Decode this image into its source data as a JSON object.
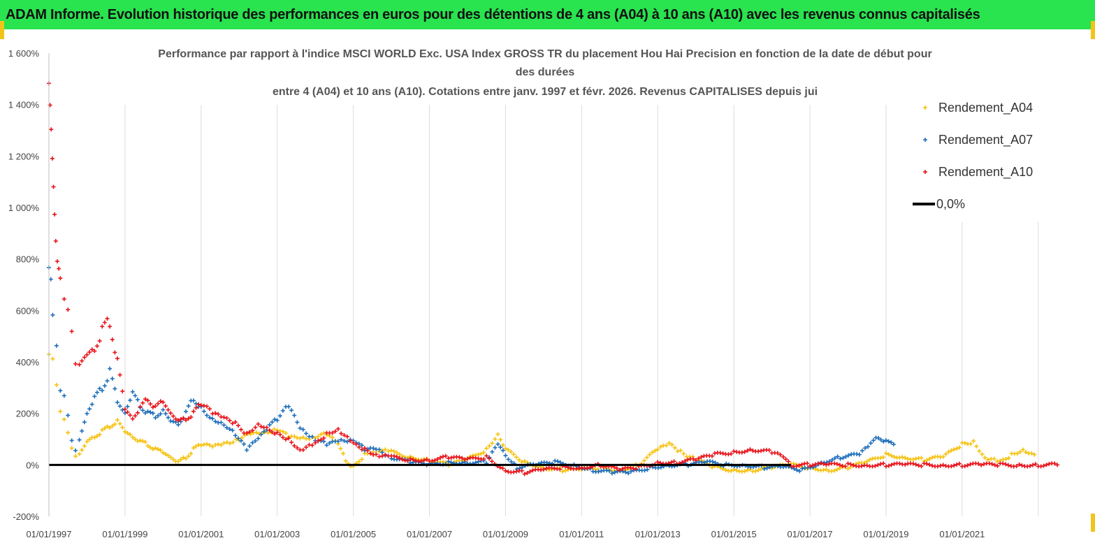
{
  "banner": {
    "title": "ADAM Informe. Evolution historique des performances en euros pour des détentions de 4 ans (A04) à 10 ans (A10) avec les revenus connus capitalisés"
  },
  "colors": {
    "banner_bg": "#29e34f",
    "A04": "#f5c211",
    "A07": "#1f6fba",
    "A10": "#e8141b",
    "zero": "#000000"
  },
  "chart_data": {
    "type": "scatter",
    "title_lines": [
      "Performance par rapport à l'indice MSCI WORLD  Exc. USA Index GROSS TR  du placement Hou Hai Precision   en fonction de la date de début pour",
      "des durées",
      "entre 4 (A04) et 10 ans (A10). Cotations entre janv. 1997 et févr. 2026. Revenus CAPITALISES depuis jui"
    ],
    "x_ticks": [
      "01/01/1997",
      "01/01/1999",
      "01/01/2001",
      "01/01/2003",
      "01/01/2005",
      "01/01/2007",
      "01/01/2009",
      "01/01/2011",
      "01/01/2013",
      "01/01/2015",
      "01/01/2017",
      "01/01/2019",
      "01/01/2021"
    ],
    "y_ticks": [
      "1 600%",
      "1 400%",
      "1 200%",
      "1 000%",
      "800%",
      "600%",
      "400%",
      "200%",
      "0%",
      "-200%"
    ],
    "xlim": [
      1997.0,
      2023.5
    ],
    "ylim": [
      -200,
      1600
    ],
    "grid": "vertical",
    "legend_position": "top-right",
    "legend": [
      "Rendement_A04",
      "Rendement_A07",
      "Rendement_A10",
      "0,0%"
    ],
    "series": [
      {
        "name": "Rendement_A04",
        "points": [
          [
            1997.0,
            420
          ],
          [
            1997.1,
            400
          ],
          [
            1997.2,
            300
          ],
          [
            1997.3,
            200
          ],
          [
            1997.4,
            170
          ],
          [
            1997.5,
            120
          ],
          [
            1997.6,
            60
          ],
          [
            1997.7,
            30
          ],
          [
            1997.8,
            40
          ],
          [
            1998.0,
            90
          ],
          [
            1998.2,
            110
          ],
          [
            1998.4,
            130
          ],
          [
            1998.6,
            150
          ],
          [
            1998.8,
            170
          ],
          [
            1999.0,
            130
          ],
          [
            1999.2,
            110
          ],
          [
            1999.4,
            90
          ],
          [
            1999.6,
            80
          ],
          [
            1999.8,
            60
          ],
          [
            2000.0,
            50
          ],
          [
            2000.2,
            30
          ],
          [
            2000.4,
            10
          ],
          [
            2000.6,
            30
          ],
          [
            2000.8,
            60
          ],
          [
            2001.0,
            80
          ],
          [
            2001.3,
            70
          ],
          [
            2001.6,
            80
          ],
          [
            2002.0,
            100
          ],
          [
            2002.3,
            120
          ],
          [
            2002.6,
            120
          ],
          [
            2003.0,
            140
          ],
          [
            2003.3,
            110
          ],
          [
            2003.6,
            100
          ],
          [
            2004.0,
            110
          ],
          [
            2004.3,
            120
          ],
          [
            2004.6,
            80
          ],
          [
            2004.8,
            20
          ],
          [
            2005.0,
            -10
          ],
          [
            2005.3,
            40
          ],
          [
            2005.6,
            60
          ],
          [
            2006.0,
            50
          ],
          [
            2006.5,
            30
          ],
          [
            2007.0,
            20
          ],
          [
            2007.5,
            0
          ],
          [
            2008.0,
            20
          ],
          [
            2008.5,
            60
          ],
          [
            2008.8,
            120
          ],
          [
            2009.0,
            60
          ],
          [
            2009.5,
            10
          ],
          [
            2010.0,
            -10
          ],
          [
            2010.5,
            -20
          ],
          [
            2011.0,
            -20
          ],
          [
            2011.5,
            -10
          ],
          [
            2012.0,
            -20
          ],
          [
            2012.5,
            0
          ],
          [
            2013.0,
            60
          ],
          [
            2013.3,
            80
          ],
          [
            2013.6,
            50
          ],
          [
            2014.0,
            20
          ],
          [
            2014.5,
            -10
          ],
          [
            2015.0,
            -20
          ],
          [
            2015.5,
            -20
          ],
          [
            2016.0,
            -10
          ],
          [
            2016.5,
            0
          ],
          [
            2017.0,
            -10
          ],
          [
            2017.5,
            -20
          ],
          [
            2018.0,
            -10
          ],
          [
            2018.5,
            10
          ],
          [
            2019.0,
            40
          ],
          [
            2019.5,
            30
          ],
          [
            2020.0,
            20
          ],
          [
            2020.5,
            30
          ],
          [
            2021.0,
            80
          ],
          [
            2021.3,
            90
          ],
          [
            2021.6,
            30
          ],
          [
            2022.0,
            10
          ],
          [
            2022.3,
            40
          ],
          [
            2022.6,
            60
          ],
          [
            2022.9,
            40
          ]
        ]
      },
      {
        "name": "Rendement_A07",
        "points": [
          [
            1997.0,
            750
          ],
          [
            1997.05,
            700
          ],
          [
            1997.1,
            600
          ],
          [
            1997.2,
            480
          ],
          [
            1997.3,
            300
          ],
          [
            1997.4,
            280
          ],
          [
            1997.5,
            200
          ],
          [
            1997.6,
            100
          ],
          [
            1997.7,
            60
          ],
          [
            1997.8,
            100
          ],
          [
            1998.0,
            200
          ],
          [
            1998.2,
            260
          ],
          [
            1998.4,
            300
          ],
          [
            1998.6,
            360
          ],
          [
            1998.8,
            250
          ],
          [
            1999.0,
            200
          ],
          [
            1999.2,
            280
          ],
          [
            1999.4,
            230
          ],
          [
            1999.6,
            200
          ],
          [
            1999.8,
            190
          ],
          [
            2000.0,
            210
          ],
          [
            2000.2,
            170
          ],
          [
            2000.4,
            160
          ],
          [
            2000.6,
            200
          ],
          [
            2000.8,
            260
          ],
          [
            2001.0,
            220
          ],
          [
            2001.3,
            180
          ],
          [
            2001.6,
            160
          ],
          [
            2001.9,
            120
          ],
          [
            2002.2,
            60
          ],
          [
            2002.5,
            100
          ],
          [
            2002.8,
            150
          ],
          [
            2003.0,
            180
          ],
          [
            2003.3,
            230
          ],
          [
            2003.6,
            140
          ],
          [
            2004.0,
            100
          ],
          [
            2004.3,
            80
          ],
          [
            2004.6,
            90
          ],
          [
            2005.0,
            100
          ],
          [
            2005.3,
            60
          ],
          [
            2005.6,
            60
          ],
          [
            2006.0,
            30
          ],
          [
            2006.5,
            10
          ],
          [
            2007.0,
            0
          ],
          [
            2007.5,
            10
          ],
          [
            2008.0,
            10
          ],
          [
            2008.5,
            10
          ],
          [
            2008.8,
            80
          ],
          [
            2009.0,
            40
          ],
          [
            2009.3,
            -10
          ],
          [
            2009.8,
            0
          ],
          [
            2010.3,
            10
          ],
          [
            2010.8,
            0
          ],
          [
            2011.3,
            -20
          ],
          [
            2011.8,
            -30
          ],
          [
            2012.3,
            -30
          ],
          [
            2012.8,
            -10
          ],
          [
            2013.3,
            0
          ],
          [
            2013.8,
            0
          ],
          [
            2014.3,
            10
          ],
          [
            2014.8,
            0
          ],
          [
            2015.3,
            0
          ],
          [
            2015.8,
            -10
          ],
          [
            2016.3,
            -10
          ],
          [
            2016.8,
            -20
          ],
          [
            2017.3,
            10
          ],
          [
            2017.8,
            30
          ],
          [
            2018.3,
            40
          ],
          [
            2018.6,
            80
          ],
          [
            2018.8,
            110
          ],
          [
            2019.0,
            90
          ],
          [
            2019.2,
            80
          ]
        ]
      },
      {
        "name": "Rendement_A10",
        "points": [
          [
            1997.0,
            1450
          ],
          [
            1997.03,
            1380
          ],
          [
            1997.06,
            1300
          ],
          [
            1997.09,
            1200
          ],
          [
            1997.12,
            1100
          ],
          [
            1997.15,
            1000
          ],
          [
            1997.18,
            900
          ],
          [
            1997.22,
            800
          ],
          [
            1997.26,
            750
          ],
          [
            1997.3,
            700
          ],
          [
            1997.4,
            620
          ],
          [
            1997.5,
            580
          ],
          [
            1997.6,
            500
          ],
          [
            1997.7,
            380
          ],
          [
            1997.8,
            380
          ],
          [
            1998.0,
            430
          ],
          [
            1998.2,
            450
          ],
          [
            1998.4,
            520
          ],
          [
            1998.6,
            560
          ],
          [
            1998.8,
            400
          ],
          [
            1999.0,
            220
          ],
          [
            1999.2,
            180
          ],
          [
            1999.4,
            220
          ],
          [
            1999.6,
            260
          ],
          [
            1999.8,
            220
          ],
          [
            2000.0,
            250
          ],
          [
            2000.2,
            200
          ],
          [
            2000.4,
            170
          ],
          [
            2000.6,
            180
          ],
          [
            2000.8,
            200
          ],
          [
            2001.0,
            240
          ],
          [
            2001.3,
            200
          ],
          [
            2001.6,
            180
          ],
          [
            2001.9,
            160
          ],
          [
            2002.2,
            120
          ],
          [
            2002.5,
            160
          ],
          [
            2002.8,
            140
          ],
          [
            2003.0,
            120
          ],
          [
            2003.3,
            100
          ],
          [
            2003.6,
            60
          ],
          [
            2004.0,
            80
          ],
          [
            2004.3,
            120
          ],
          [
            2004.6,
            140
          ],
          [
            2005.0,
            80
          ],
          [
            2005.3,
            60
          ],
          [
            2005.6,
            40
          ],
          [
            2006.0,
            30
          ],
          [
            2006.5,
            20
          ],
          [
            2007.0,
            20
          ],
          [
            2007.5,
            30
          ],
          [
            2008.0,
            20
          ],
          [
            2008.5,
            30
          ],
          [
            2009.0,
            -20
          ],
          [
            2009.5,
            -30
          ],
          [
            2010.0,
            -20
          ],
          [
            2010.5,
            -10
          ],
          [
            2011.0,
            -10
          ],
          [
            2011.5,
            0
          ],
          [
            2012.0,
            -20
          ],
          [
            2012.5,
            -10
          ],
          [
            2013.0,
            10
          ],
          [
            2013.5,
            10
          ],
          [
            2014.0,
            20
          ],
          [
            2014.5,
            40
          ],
          [
            2015.0,
            50
          ],
          [
            2015.5,
            60
          ],
          [
            2016.0,
            50
          ],
          [
            2016.3,
            30
          ],
          [
            2016.5,
            0
          ],
          [
            2017.0,
            0
          ],
          [
            2017.5,
            0
          ],
          [
            2018.0,
            0
          ],
          [
            2018.5,
            0
          ],
          [
            2019.0,
            0
          ],
          [
            2019.5,
            0
          ],
          [
            2020.0,
            0
          ],
          [
            2020.5,
            0
          ],
          [
            2021.0,
            0
          ],
          [
            2021.5,
            0
          ],
          [
            2022.0,
            0
          ],
          [
            2022.5,
            0
          ],
          [
            2023.0,
            0
          ],
          [
            2023.5,
            0
          ]
        ]
      },
      {
        "name": "0,0%",
        "kind": "line",
        "points": [
          [
            1997.0,
            0
          ],
          [
            2016.5,
            0
          ]
        ]
      }
    ]
  }
}
